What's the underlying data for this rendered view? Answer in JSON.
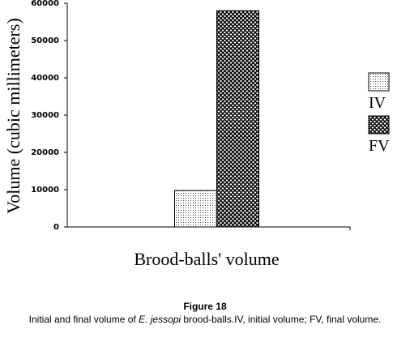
{
  "chart_data": {
    "type": "bar",
    "x_label": "Brood-balls' volume",
    "y_label": "Volume (cubic millimeters)",
    "categories": [
      null
    ],
    "series": [
      {
        "name": "IV",
        "color": "#000000",
        "pattern": "dots",
        "values": [
          9800
        ]
      },
      {
        "name": "FV",
        "color": "#000000",
        "pattern": "crosshatch",
        "values": [
          58000
        ]
      }
    ],
    "ylim": [
      0,
      60000
    ],
    "yticks": [
      0,
      10000,
      20000,
      30000,
      40000,
      50000,
      60000
    ],
    "grid": false,
    "legend": "right"
  },
  "caption": {
    "title": "Figure 18",
    "prefix": "Initial and final volume of ",
    "species": "E. jessopi",
    "suffix": " brood-balls.IV, initial volume; FV, final volume."
  }
}
